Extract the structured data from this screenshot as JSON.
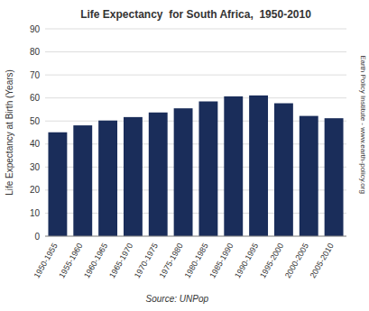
{
  "chart_data": {
    "type": "bar",
    "title": "Life Expectancy  for South Africa,  1950-2010",
    "y_label": "Life Expectancy at Birth (Years)",
    "annotations": [
      "Source: UNPop",
      "Earth Policy Institute - www.earth-policy.org"
    ],
    "categories": [
      "1950-1955",
      "1955-1960",
      "1960-1965",
      "1965-1970",
      "1970-1975",
      "1975-1980",
      "1980-1985",
      "1985-1990",
      "1990-1995",
      "1995-2000",
      "2000-2005",
      "2005-2010"
    ],
    "values": [
      45.1,
      48.1,
      50.2,
      51.7,
      53.7,
      55.5,
      58.5,
      60.7,
      61.1,
      57.7,
      52.2,
      51.2
    ],
    "color": "#1a2d5a",
    "ylim": [
      0,
      90
    ],
    "yticks": [
      0,
      10,
      20,
      30,
      40,
      50,
      60,
      70,
      80,
      90
    ],
    "grid": true
  }
}
